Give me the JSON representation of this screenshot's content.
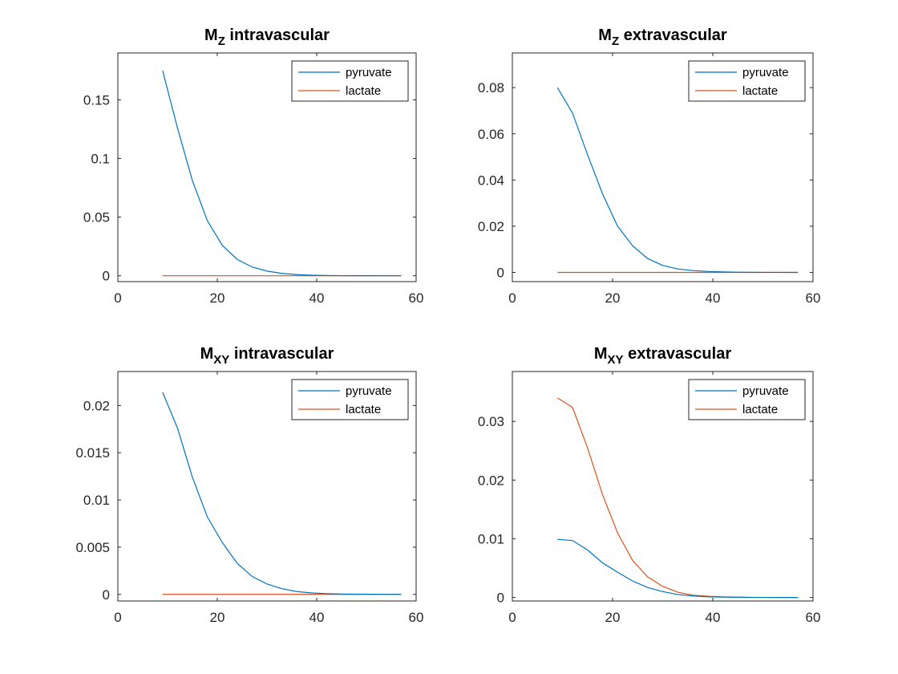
{
  "colors": {
    "pyruvate": "#0072BD",
    "lactate": "#D95319"
  },
  "chart_data": [
    {
      "type": "line",
      "title": {
        "main": "M",
        "sub": "Z",
        "rest": " intravascular"
      },
      "xlim": [
        0,
        60
      ],
      "ylim": [
        -0.005,
        0.19
      ],
      "xticks": [
        0,
        20,
        40,
        60
      ],
      "xtick_labels": [
        "0",
        "20",
        "40",
        "60"
      ],
      "yticks": [
        0,
        0.05,
        0.1,
        0.15
      ],
      "ytick_labels": [
        "0",
        "0.05",
        "0.1",
        "0.15"
      ],
      "legend": "top-right",
      "series": [
        {
          "name": "pyruvate",
          "x": [
            9,
            12,
            15,
            18,
            21,
            24,
            27,
            30,
            33,
            36,
            39,
            42,
            45,
            48,
            51,
            54,
            57
          ],
          "values": [
            0.175,
            0.126,
            0.081,
            0.047,
            0.026,
            0.014,
            0.0075,
            0.004,
            0.002,
            0.001,
            0.0005,
            0.0002,
            0.0001,
            5e-05,
            2e-05,
            1e-05,
            0.0
          ]
        },
        {
          "name": "lactate",
          "x": [
            9,
            12,
            15,
            18,
            21,
            24,
            27,
            30,
            33,
            36,
            39,
            42,
            45,
            48,
            51,
            54,
            57
          ],
          "values": [
            0,
            0,
            0,
            0,
            0,
            0,
            0,
            0,
            0,
            0,
            0,
            0,
            0,
            0,
            0,
            0,
            0
          ]
        }
      ]
    },
    {
      "type": "line",
      "title": {
        "main": "M",
        "sub": "Z",
        "rest": " extravascular"
      },
      "xlim": [
        0,
        60
      ],
      "ylim": [
        -0.004,
        0.095
      ],
      "xticks": [
        0,
        20,
        40,
        60
      ],
      "xtick_labels": [
        "0",
        "20",
        "40",
        "60"
      ],
      "yticks": [
        0,
        0.02,
        0.04,
        0.06,
        0.08
      ],
      "ytick_labels": [
        "0",
        "0.02",
        "0.04",
        "0.06",
        "0.08"
      ],
      "legend": "top-right",
      "series": [
        {
          "name": "pyruvate",
          "x": [
            9,
            12,
            15,
            18,
            21,
            24,
            27,
            30,
            33,
            36,
            39,
            42,
            45,
            48,
            51,
            54,
            57
          ],
          "values": [
            0.08,
            0.069,
            0.051,
            0.034,
            0.02,
            0.0115,
            0.006,
            0.003,
            0.0015,
            0.0008,
            0.0004,
            0.0002,
            0.0001,
            5e-05,
            2e-05,
            1e-05,
            0.0
          ]
        },
        {
          "name": "lactate",
          "x": [
            9,
            12,
            15,
            18,
            21,
            24,
            27,
            30,
            33,
            36,
            39,
            42,
            45,
            48,
            51,
            54,
            57
          ],
          "values": [
            0,
            0,
            0,
            0,
            0,
            0,
            0,
            0,
            0,
            0,
            0,
            0,
            0,
            0,
            0,
            0,
            0
          ]
        }
      ]
    },
    {
      "type": "line",
      "title": {
        "main": "M",
        "sub": "XY",
        "rest": " intravascular"
      },
      "xlim": [
        0,
        60
      ],
      "ylim": [
        -0.0007,
        0.0236
      ],
      "xticks": [
        0,
        20,
        40,
        60
      ],
      "xtick_labels": [
        "0",
        "20",
        "40",
        "60"
      ],
      "yticks": [
        0,
        0.005,
        0.01,
        0.015,
        0.02
      ],
      "ytick_labels": [
        "0",
        "0.005",
        "0.01",
        "0.015",
        "0.02"
      ],
      "legend": "top-right",
      "series": [
        {
          "name": "pyruvate",
          "x": [
            9,
            12,
            15,
            18,
            21,
            24,
            27,
            30,
            33,
            36,
            39,
            42,
            45,
            48,
            51,
            54,
            57
          ],
          "values": [
            0.0214,
            0.0176,
            0.0124,
            0.0082,
            0.0055,
            0.0033,
            0.0019,
            0.0011,
            0.0006,
            0.0003,
            0.00015,
            8e-05,
            4e-05,
            2e-05,
            1e-05,
            5e-06,
            0.0
          ]
        },
        {
          "name": "lactate",
          "x": [
            9,
            12,
            15,
            18,
            21,
            24,
            27,
            30,
            33,
            36,
            39,
            42,
            45,
            48,
            51,
            54,
            57
          ],
          "values": [
            0,
            0,
            0,
            0,
            0,
            0,
            0,
            0,
            0,
            0,
            0,
            0,
            0,
            0,
            0,
            0,
            0
          ]
        }
      ]
    },
    {
      "type": "line",
      "title": {
        "main": "M",
        "sub": "XY",
        "rest": " extravascular"
      },
      "xlim": [
        0,
        60
      ],
      "ylim": [
        -0.0006,
        0.0385
      ],
      "xticks": [
        0,
        20,
        40,
        60
      ],
      "xtick_labels": [
        "0",
        "20",
        "40",
        "60"
      ],
      "yticks": [
        0,
        0.01,
        0.02,
        0.03
      ],
      "ytick_labels": [
        "0",
        "0.01",
        "0.02",
        "0.03"
      ],
      "legend": "top-right",
      "series": [
        {
          "name": "pyruvate",
          "x": [
            9,
            12,
            15,
            18,
            21,
            24,
            27,
            30,
            33,
            36,
            39,
            42,
            45,
            48,
            51,
            54,
            57
          ],
          "values": [
            0.0099,
            0.0097,
            0.0081,
            0.0059,
            0.0043,
            0.0028,
            0.0017,
            0.001,
            0.0005,
            0.00025,
            0.00012,
            6e-05,
            3e-05,
            1e-05,
            5e-06,
            2e-06,
            0.0
          ]
        },
        {
          "name": "lactate",
          "x": [
            9,
            12,
            15,
            18,
            21,
            24,
            27,
            30,
            33,
            36,
            39,
            42,
            45,
            48,
            51,
            54,
            57
          ],
          "values": [
            0.034,
            0.0324,
            0.0255,
            0.0175,
            0.011,
            0.0063,
            0.0035,
            0.0019,
            0.0009,
            0.0004,
            0.0002,
            0.0001,
            5e-05,
            2e-05,
            1e-05,
            5e-06,
            0.0
          ]
        }
      ]
    }
  ]
}
